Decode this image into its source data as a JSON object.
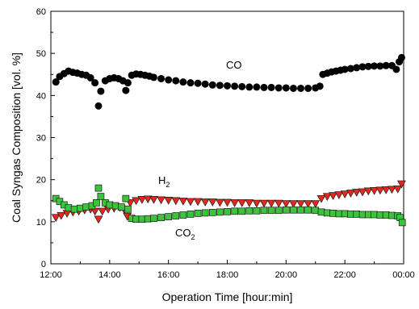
{
  "chart_data": {
    "type": "scatter",
    "xlabel": "Operation Time [hour:min]",
    "ylabel": "Coal Syngas Composition [vol. %]",
    "xlim": [
      12.0,
      24.0
    ],
    "ylim": [
      0,
      60
    ],
    "x_ticks": [
      {
        "value": 12,
        "label": "12:00"
      },
      {
        "value": 14,
        "label": "14:00"
      },
      {
        "value": 16,
        "label": "16:00"
      },
      {
        "value": 18,
        "label": "18:00"
      },
      {
        "value": 20,
        "label": "20:00"
      },
      {
        "value": 22,
        "label": "22:00"
      },
      {
        "value": 24,
        "label": "00:00"
      }
    ],
    "y_ticks": [
      0,
      10,
      20,
      30,
      40,
      50,
      60
    ],
    "grid": false,
    "series": [
      {
        "name": "CO",
        "label_main": "CO",
        "label_sub": "",
        "marker": "circle",
        "color": "#000000",
        "x": [
          12.17,
          12.3,
          12.45,
          12.6,
          12.75,
          12.9,
          13.05,
          13.2,
          13.35,
          13.5,
          13.62,
          13.7,
          13.85,
          14.0,
          14.15,
          14.3,
          14.45,
          14.55,
          14.62,
          14.75,
          14.9,
          15.05,
          15.2,
          15.35,
          15.5,
          15.75,
          16.0,
          16.25,
          16.5,
          16.75,
          17.0,
          17.25,
          17.5,
          17.75,
          18.0,
          18.25,
          18.5,
          18.75,
          19.0,
          19.25,
          19.5,
          19.75,
          20.0,
          20.25,
          20.5,
          20.75,
          21.0,
          21.15,
          21.25,
          21.4,
          21.55,
          21.7,
          21.85,
          22.0,
          22.2,
          22.4,
          22.6,
          22.8,
          23.0,
          23.2,
          23.4,
          23.6,
          23.75,
          23.85,
          23.93
        ],
        "y": [
          43.2,
          44.5,
          45.2,
          45.8,
          45.5,
          45.3,
          45.0,
          44.8,
          44.2,
          43.0,
          37.5,
          41.0,
          43.5,
          44.0,
          44.2,
          44.0,
          43.5,
          41.2,
          43.0,
          44.8,
          45.1,
          45.0,
          44.8,
          44.6,
          44.3,
          44.0,
          43.7,
          43.5,
          43.2,
          43.0,
          42.9,
          42.7,
          42.5,
          42.4,
          42.3,
          42.2,
          42.1,
          42.0,
          42.0,
          41.9,
          41.9,
          41.8,
          41.8,
          41.7,
          41.7,
          41.7,
          41.8,
          42.2,
          45.0,
          45.3,
          45.6,
          45.8,
          46.0,
          46.2,
          46.4,
          46.6,
          46.8,
          46.9,
          47.0,
          47.0,
          47.1,
          47.1,
          46.2,
          48.0,
          49.0
        ]
      },
      {
        "name": "H2",
        "label_main": "H",
        "label_sub": "2",
        "marker": "triangle-down",
        "color": "#e5271c",
        "x": [
          12.17,
          12.35,
          12.55,
          12.75,
          12.95,
          13.15,
          13.35,
          13.5,
          13.62,
          13.75,
          13.95,
          14.15,
          14.35,
          14.5,
          14.6,
          14.7,
          14.9,
          15.1,
          15.3,
          15.5,
          15.75,
          16.0,
          16.25,
          16.5,
          16.75,
          17.0,
          17.25,
          17.5,
          17.75,
          18.0,
          18.25,
          18.5,
          18.75,
          19.0,
          19.25,
          19.5,
          19.75,
          20.0,
          20.25,
          20.5,
          20.75,
          21.0,
          21.2,
          21.4,
          21.6,
          21.8,
          22.0,
          22.2,
          22.4,
          22.6,
          22.8,
          23.0,
          23.2,
          23.4,
          23.6,
          23.8,
          23.93
        ],
        "y": [
          11.0,
          11.5,
          12.0,
          12.3,
          12.5,
          12.8,
          13.0,
          12.5,
          10.6,
          12.5,
          13.0,
          13.2,
          13.4,
          12.8,
          11.3,
          14.5,
          15.0,
          15.3,
          15.4,
          15.3,
          15.2,
          15.1,
          15.0,
          14.9,
          14.8,
          14.8,
          14.7,
          14.7,
          14.6,
          14.6,
          14.5,
          14.5,
          14.5,
          14.4,
          14.4,
          14.4,
          14.4,
          14.3,
          14.3,
          14.3,
          14.3,
          14.3,
          15.5,
          16.0,
          16.2,
          16.4,
          16.6,
          16.8,
          17.0,
          17.1,
          17.3,
          17.4,
          17.5,
          17.6,
          17.7,
          17.8,
          19.0
        ]
      },
      {
        "name": "CO2",
        "label_main": "CO",
        "label_sub": "2",
        "marker": "square",
        "color": "#3cc43c",
        "x": [
          12.17,
          12.3,
          12.45,
          12.6,
          12.8,
          13.0,
          13.2,
          13.4,
          13.55,
          13.62,
          13.7,
          13.85,
          14.0,
          14.2,
          14.4,
          14.55,
          14.62,
          14.75,
          14.9,
          15.1,
          15.3,
          15.5,
          15.75,
          16.0,
          16.25,
          16.5,
          16.75,
          17.0,
          17.25,
          17.5,
          17.75,
          18.0,
          18.25,
          18.5,
          18.75,
          19.0,
          19.25,
          19.5,
          19.75,
          20.0,
          20.25,
          20.5,
          20.75,
          21.0,
          21.2,
          21.4,
          21.6,
          21.8,
          22.0,
          22.2,
          22.4,
          22.6,
          22.8,
          23.0,
          23.2,
          23.4,
          23.6,
          23.8,
          23.88,
          23.95
        ],
        "y": [
          15.5,
          14.8,
          14.0,
          13.3,
          13.0,
          13.2,
          13.5,
          13.8,
          14.5,
          18.0,
          16.0,
          14.5,
          14.0,
          13.8,
          13.5,
          15.5,
          13.0,
          10.8,
          10.6,
          10.6,
          10.7,
          10.8,
          11.0,
          11.2,
          11.4,
          11.6,
          11.8,
          12.0,
          12.1,
          12.2,
          12.3,
          12.4,
          12.5,
          12.5,
          12.6,
          12.6,
          12.7,
          12.7,
          12.7,
          12.8,
          12.8,
          12.8,
          12.8,
          12.7,
          12.3,
          12.1,
          12.0,
          11.9,
          11.9,
          11.8,
          11.8,
          11.7,
          11.7,
          11.7,
          11.6,
          11.6,
          11.5,
          11.4,
          11.0,
          9.8
        ]
      }
    ]
  }
}
